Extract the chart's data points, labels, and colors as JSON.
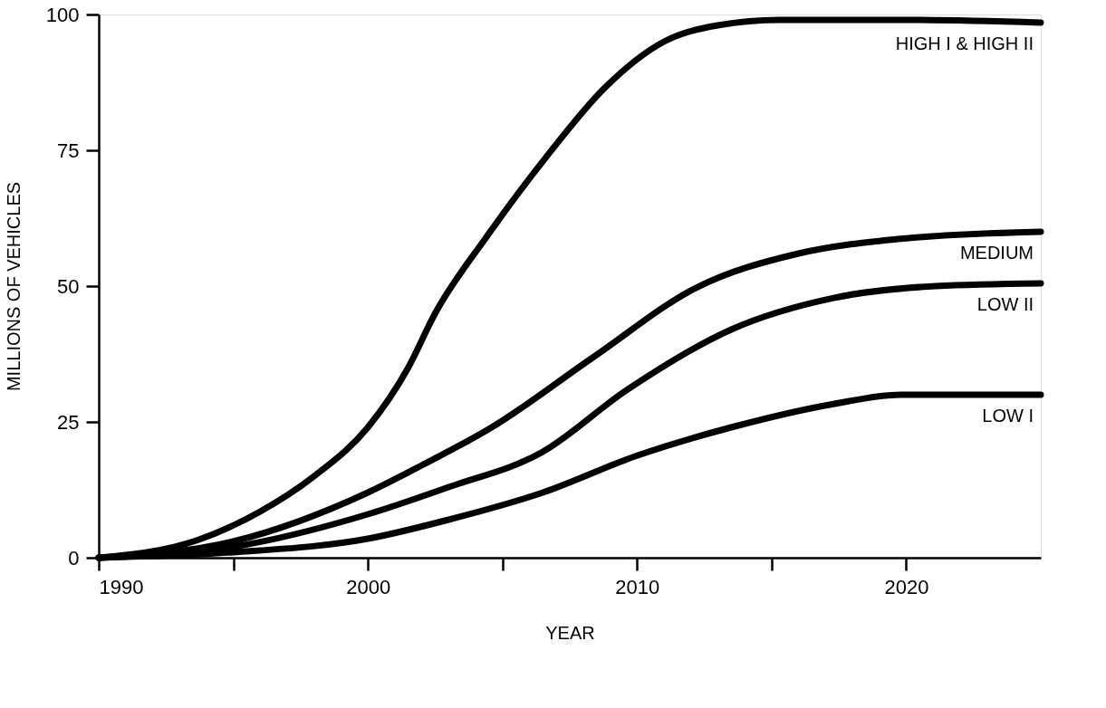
{
  "chart_data": {
    "type": "line",
    "xlabel": "YEAR",
    "ylabel": "MILLIONS OF VEHICLES",
    "xlim": [
      1990,
      2025
    ],
    "ylim": [
      0,
      100
    ],
    "xticks": [
      1990,
      {
        "value": 1995,
        "label": null
      },
      2000,
      {
        "value": 2005,
        "label": null
      },
      2010,
      {
        "value": 2015,
        "label": null
      },
      2020
    ],
    "yticks": [
      0,
      25,
      50,
      75,
      100
    ],
    "grid": false,
    "marker": "none",
    "line_style": "solid",
    "series": [
      {
        "name": "HIGH I & HIGH II",
        "color": "#000000",
        "x": [
          1990,
          1993.7,
          1996,
          1998,
          2000,
          2001.5,
          2002.5,
          2004.4,
          2006.6,
          2008.8,
          2011,
          2013,
          2015.3,
          2020,
          2025
        ],
        "values": [
          0,
          3.3,
          8.5,
          15,
          24,
          35,
          45,
          59,
          73.6,
          86.5,
          95,
          98,
          99,
          99,
          98.5
        ]
      },
      {
        "name": "MEDIUM",
        "color": "#000000",
        "x": [
          1990,
          1995,
          2000,
          2002,
          2004.6,
          2008.4,
          2012.2,
          2016,
          2019.8,
          2025
        ],
        "values": [
          0,
          3,
          12,
          17,
          24,
          37,
          49.7,
          56,
          58.7,
          60
        ]
      },
      {
        "name": "LOW II",
        "color": "#000000",
        "x": [
          1990,
          1995,
          2000,
          2003,
          2006.5,
          2009.6,
          2013.5,
          2017.3,
          2021.1,
          2025
        ],
        "values": [
          0,
          2,
          8,
          13,
          19.5,
          30.8,
          42,
          47.8,
          50,
          50.5
        ]
      },
      {
        "name": "LOW I",
        "color": "#000000",
        "x": [
          1990,
          1995,
          2000,
          2003,
          2006.5,
          2010,
          2013.5,
          2017.3,
          2019.8,
          2025
        ],
        "values": [
          0,
          1,
          3.5,
          7,
          12,
          18.8,
          24,
          28.3,
          30,
          30
        ]
      }
    ]
  }
}
